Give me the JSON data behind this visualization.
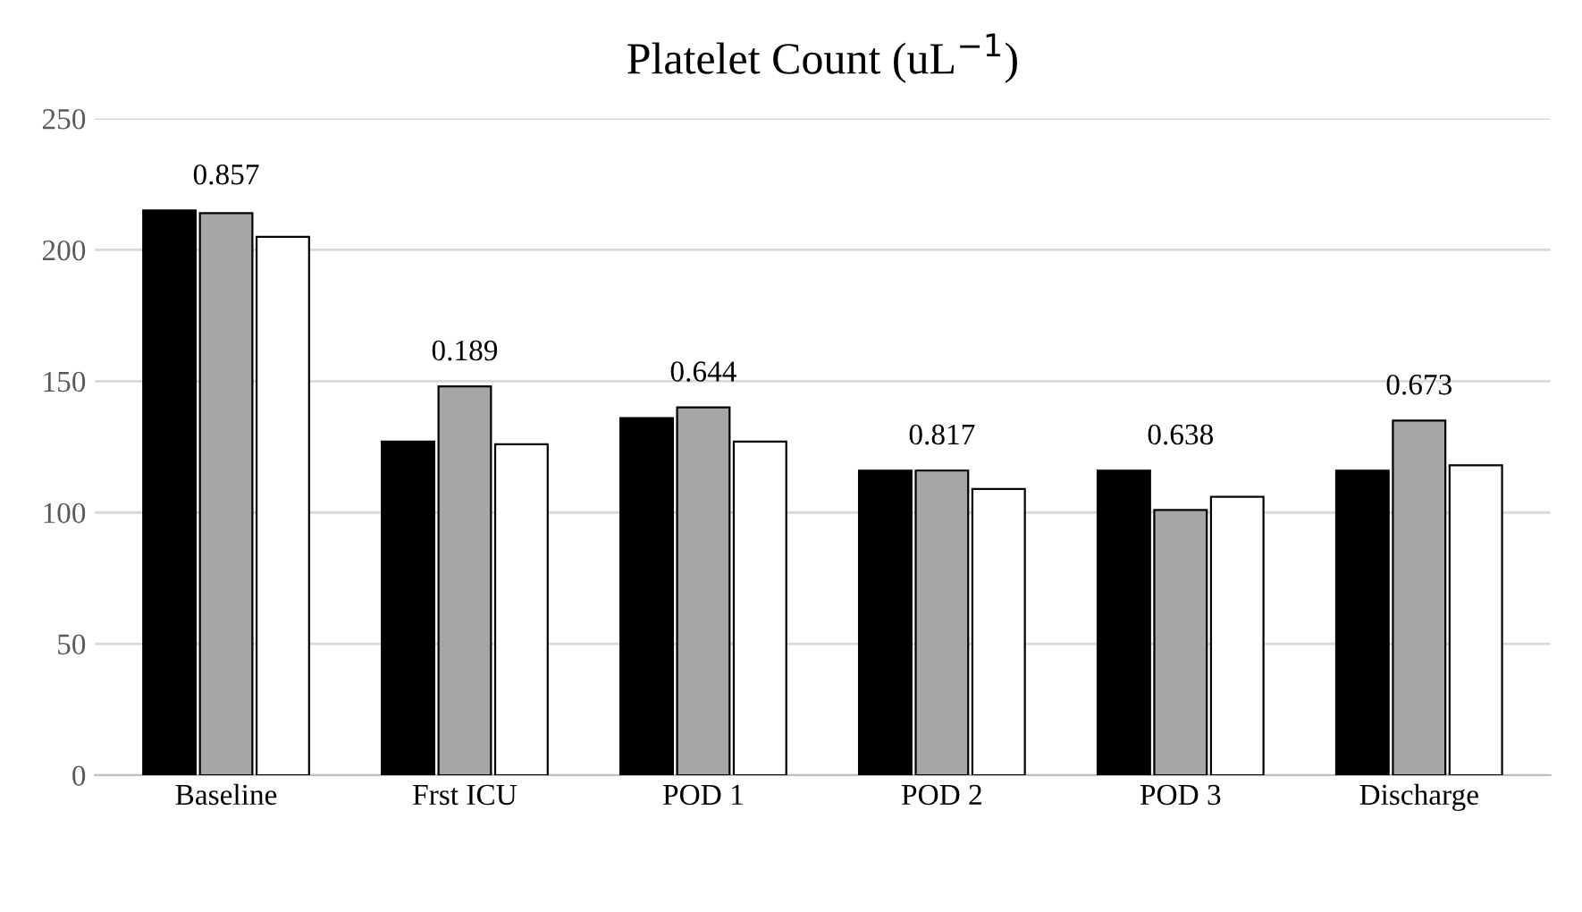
{
  "chart_data": {
    "type": "bar",
    "title": "Platelet Count (uL$^{−1}$)",
    "categories": [
      "Baseline",
      "Frst ICU",
      "POD 1",
      "POD 2",
      "POD 3",
      "Discharge"
    ],
    "series": [
      {
        "color": "#000000",
        "values": [
          215,
          127,
          136,
          116,
          116,
          116
        ]
      },
      {
        "color": "#a6a6a6",
        "values": [
          214,
          148,
          140,
          116,
          101,
          135
        ]
      },
      {
        "color": "#ffffff",
        "values": [
          205,
          126,
          127,
          109,
          106,
          118
        ]
      }
    ],
    "ylim": [
      0,
      250
    ],
    "yticks": [
      0,
      50,
      100,
      150,
      200,
      250
    ],
    "grid": "y",
    "annotations": [
      "0.857",
      "0.189",
      "0.644",
      "0.817",
      "0.638",
      "0.673"
    ]
  }
}
